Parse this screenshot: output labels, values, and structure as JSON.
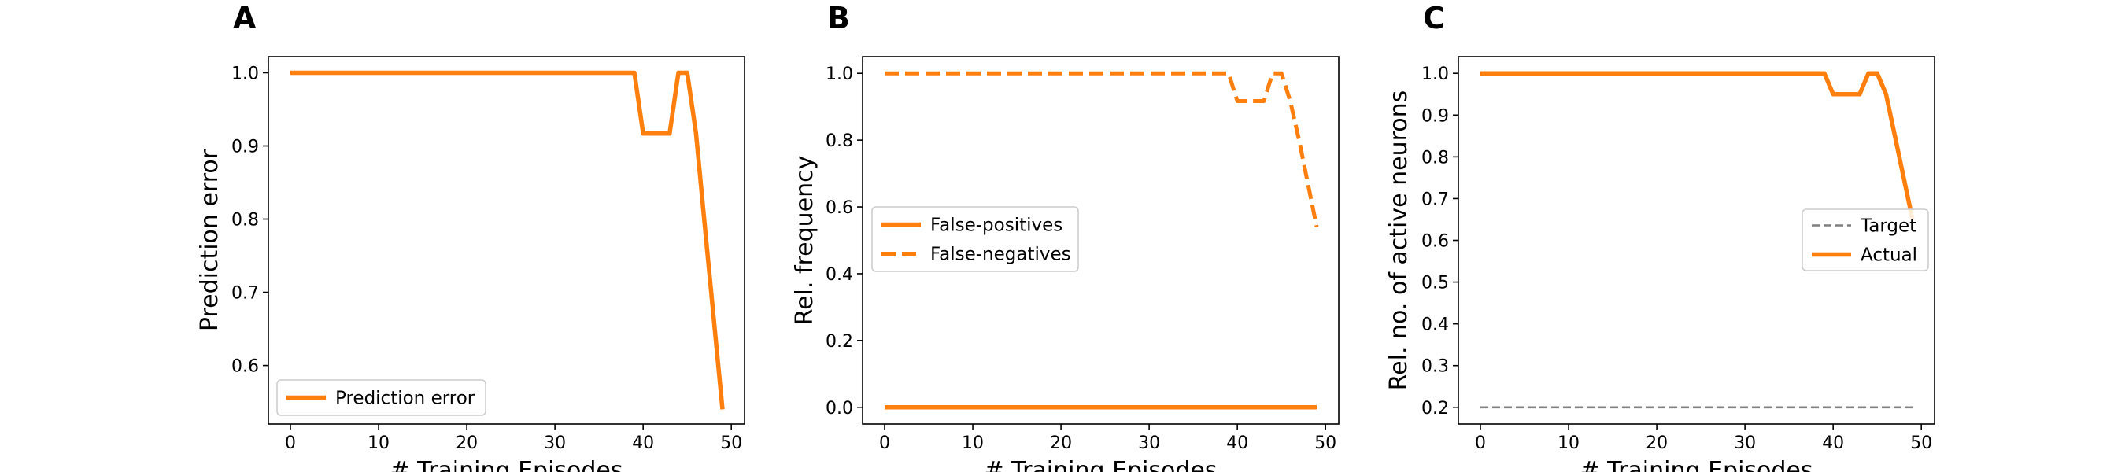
{
  "chart_data": [
    {
      "type": "line",
      "panel_label": "A",
      "xlabel": "# Training Episodes",
      "ylabel": "Prediction error",
      "xlim": [
        -2.5,
        51.5
      ],
      "ylim": [
        0.52,
        1.022
      ],
      "xticks": [
        0,
        10,
        20,
        30,
        40,
        50
      ],
      "yticks": [
        0.6,
        0.7,
        0.8,
        0.9,
        1.0
      ],
      "xtick_labels": [
        "0",
        "10",
        "20",
        "30",
        "40",
        "50"
      ],
      "ytick_labels": [
        "0.6",
        "0.7",
        "0.8",
        "0.9",
        "1.0"
      ],
      "grid": false,
      "legend": "lower-left",
      "x": [
        0,
        1,
        2,
        3,
        4,
        5,
        6,
        7,
        8,
        9,
        10,
        11,
        12,
        13,
        14,
        15,
        16,
        17,
        18,
        19,
        20,
        21,
        22,
        23,
        24,
        25,
        26,
        27,
        28,
        29,
        30,
        31,
        32,
        33,
        34,
        35,
        36,
        37,
        38,
        39,
        40,
        41,
        42,
        43,
        44,
        45,
        46,
        47,
        48,
        49
      ],
      "series": [
        {
          "name": "Prediction error",
          "color": "#ff7f0e",
          "dash": "solid",
          "values": [
            1,
            1,
            1,
            1,
            1,
            1,
            1,
            1,
            1,
            1,
            1,
            1,
            1,
            1,
            1,
            1,
            1,
            1,
            1,
            1,
            1,
            1,
            1,
            1,
            1,
            1,
            1,
            1,
            1,
            1,
            1,
            1,
            1,
            1,
            1,
            1,
            1,
            1,
            1,
            1,
            0.917,
            0.917,
            0.917,
            0.917,
            1,
            1,
            0.917,
            0.79,
            0.665,
            0.54
          ]
        }
      ]
    },
    {
      "type": "line",
      "panel_label": "B",
      "xlabel": "# Training Episodes",
      "ylabel": "Rel. frequency",
      "xlim": [
        -2.5,
        51.5
      ],
      "ylim": [
        -0.05,
        1.05
      ],
      "xticks": [
        0,
        10,
        20,
        30,
        40,
        50
      ],
      "yticks": [
        0.0,
        0.2,
        0.4,
        0.6,
        0.8,
        1.0
      ],
      "xtick_labels": [
        "0",
        "10",
        "20",
        "30",
        "40",
        "50"
      ],
      "ytick_labels": [
        "0.0",
        "0.2",
        "0.4",
        "0.6",
        "0.8",
        "1.0"
      ],
      "grid": false,
      "legend": "center-left",
      "x": [
        0,
        1,
        2,
        3,
        4,
        5,
        6,
        7,
        8,
        9,
        10,
        11,
        12,
        13,
        14,
        15,
        16,
        17,
        18,
        19,
        20,
        21,
        22,
        23,
        24,
        25,
        26,
        27,
        28,
        29,
        30,
        31,
        32,
        33,
        34,
        35,
        36,
        37,
        38,
        39,
        40,
        41,
        42,
        43,
        44,
        45,
        46,
        47,
        48,
        49
      ],
      "series": [
        {
          "name": "False-positives",
          "color": "#ff7f0e",
          "dash": "solid",
          "values": [
            0,
            0,
            0,
            0,
            0,
            0,
            0,
            0,
            0,
            0,
            0,
            0,
            0,
            0,
            0,
            0,
            0,
            0,
            0,
            0,
            0,
            0,
            0,
            0,
            0,
            0,
            0,
            0,
            0,
            0,
            0,
            0,
            0,
            0,
            0,
            0,
            0,
            0,
            0,
            0,
            0,
            0,
            0,
            0,
            0,
            0,
            0,
            0,
            0,
            0
          ]
        },
        {
          "name": "False-negatives",
          "color": "#ff7f0e",
          "dash": "dashed",
          "values": [
            1,
            1,
            1,
            1,
            1,
            1,
            1,
            1,
            1,
            1,
            1,
            1,
            1,
            1,
            1,
            1,
            1,
            1,
            1,
            1,
            1,
            1,
            1,
            1,
            1,
            1,
            1,
            1,
            1,
            1,
            1,
            1,
            1,
            1,
            1,
            1,
            1,
            1,
            1,
            1,
            0.917,
            0.917,
            0.917,
            0.917,
            1,
            1,
            0.917,
            0.8,
            0.67,
            0.54
          ]
        }
      ]
    },
    {
      "type": "line",
      "panel_label": "C",
      "xlabel": "# Training Episodes",
      "ylabel": "Rel. no. of active neurons",
      "xlim": [
        -2.5,
        51.5
      ],
      "ylim": [
        0.16,
        1.04
      ],
      "xticks": [
        0,
        10,
        20,
        30,
        40,
        50
      ],
      "yticks": [
        0.2,
        0.3,
        0.4,
        0.5,
        0.6,
        0.7,
        0.8,
        0.9,
        1.0
      ],
      "xtick_labels": [
        "0",
        "10",
        "20",
        "30",
        "40",
        "50"
      ],
      "ytick_labels": [
        "0.2",
        "0.3",
        "0.4",
        "0.5",
        "0.6",
        "0.7",
        "0.8",
        "0.9",
        "1.0"
      ],
      "grid": false,
      "legend": "center-right",
      "x": [
        0,
        1,
        2,
        3,
        4,
        5,
        6,
        7,
        8,
        9,
        10,
        11,
        12,
        13,
        14,
        15,
        16,
        17,
        18,
        19,
        20,
        21,
        22,
        23,
        24,
        25,
        26,
        27,
        28,
        29,
        30,
        31,
        32,
        33,
        34,
        35,
        36,
        37,
        38,
        39,
        40,
        41,
        42,
        43,
        44,
        45,
        46,
        47,
        48,
        49
      ],
      "series": [
        {
          "name": "Target",
          "color": "#7f7f7f",
          "dash": "dashed-thin",
          "values": [
            0.2,
            0.2,
            0.2,
            0.2,
            0.2,
            0.2,
            0.2,
            0.2,
            0.2,
            0.2,
            0.2,
            0.2,
            0.2,
            0.2,
            0.2,
            0.2,
            0.2,
            0.2,
            0.2,
            0.2,
            0.2,
            0.2,
            0.2,
            0.2,
            0.2,
            0.2,
            0.2,
            0.2,
            0.2,
            0.2,
            0.2,
            0.2,
            0.2,
            0.2,
            0.2,
            0.2,
            0.2,
            0.2,
            0.2,
            0.2,
            0.2,
            0.2,
            0.2,
            0.2,
            0.2,
            0.2,
            0.2,
            0.2,
            0.2,
            0.2
          ]
        },
        {
          "name": "Actual",
          "color": "#ff7f0e",
          "dash": "solid",
          "values": [
            1,
            1,
            1,
            1,
            1,
            1,
            1,
            1,
            1,
            1,
            1,
            1,
            1,
            1,
            1,
            1,
            1,
            1,
            1,
            1,
            1,
            1,
            1,
            1,
            1,
            1,
            1,
            1,
            1,
            1,
            1,
            1,
            1,
            1,
            1,
            1,
            1,
            1,
            1,
            1,
            0.95,
            0.95,
            0.95,
            0.95,
            1,
            1,
            0.95,
            0.85,
            0.75,
            0.65
          ]
        }
      ]
    }
  ]
}
